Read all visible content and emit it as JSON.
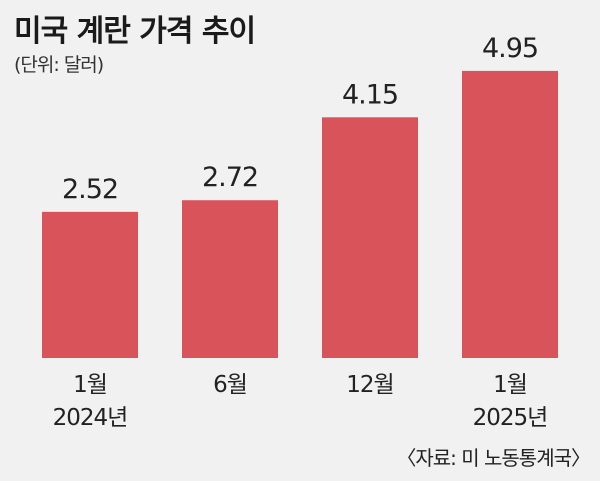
{
  "chart_data": {
    "type": "bar",
    "title": "미국 계란 가격 추이",
    "unit": "(단위: 달러)",
    "categories": [
      {
        "month": "1월",
        "year": "2024년"
      },
      {
        "month": "6월",
        "year": ""
      },
      {
        "month": "12월",
        "year": ""
      },
      {
        "month": "1월",
        "year": "2025년"
      }
    ],
    "values": [
      2.52,
      2.72,
      4.15,
      4.95
    ],
    "value_labels": [
      "2.52",
      "2.72",
      "4.15",
      "4.95"
    ],
    "ylim": [
      0,
      5
    ],
    "grid": false,
    "bar_color": "#d9535b",
    "source": "〈자료: 미 노동통계국〉"
  }
}
